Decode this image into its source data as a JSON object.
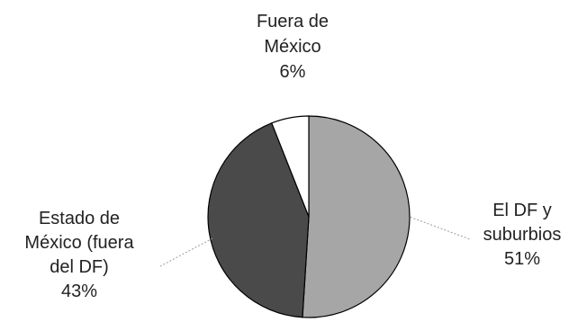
{
  "chart_data": {
    "type": "pie",
    "title": "",
    "slices": [
      {
        "key": "df",
        "label_lines": [
          "El DF y",
          "suburbios"
        ],
        "pct_label": "51%",
        "value": 51,
        "color": "#a6a6a6"
      },
      {
        "key": "edomex",
        "label_lines": [
          "Estado de",
          "México (fuera",
          "del DF)"
        ],
        "pct_label": "43%",
        "value": 43,
        "color": "#4a4a4a"
      },
      {
        "key": "fuera",
        "label_lines": [
          "Fuera de",
          "México"
        ],
        "pct_label": "6%",
        "value": 6,
        "color": "#ffffff"
      }
    ],
    "start_angle_deg": 0,
    "direction": "clockwise",
    "legend": "none",
    "grid": false
  }
}
